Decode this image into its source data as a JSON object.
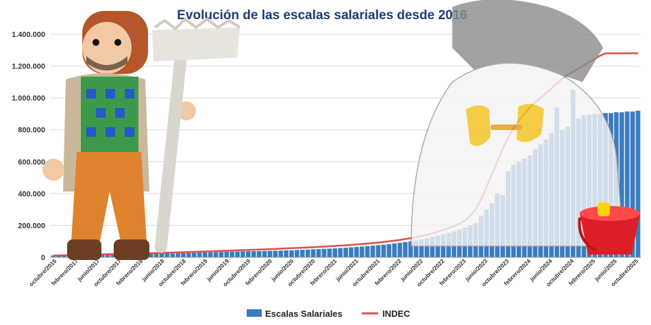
{
  "chart_data": {
    "type": "bar",
    "title": "Evolución de las escalas salariales desde 2016",
    "xlabel": "",
    "ylabel": "",
    "ylim": [
      0,
      1400000
    ],
    "yticks": [
      "0",
      "200.000",
      "400.000",
      "600.000",
      "800.000",
      "1.000.000",
      "1.200.000",
      "1.400.000"
    ],
    "ytick_values": [
      0,
      200000,
      400000,
      600000,
      800000,
      1000000,
      1200000,
      1400000
    ],
    "tick_labels": [
      "octubre/2016",
      "febrero/2017",
      "junio/2017",
      "octubre/2017",
      "febrero/2018",
      "junio/2018",
      "octubre/2018",
      "febrero/2019",
      "junio/2019",
      "octubre/2019",
      "febrero/2020",
      "junio/2020",
      "octubre/2020",
      "febrero/2021",
      "junio/2021",
      "octubre/2021",
      "febrero/2022",
      "junio/2022",
      "octubre/2022",
      "febrero/2023",
      "junio/2023",
      "octubre/2023",
      "febrero/2024",
      "junio/2024",
      "octubre/2024",
      "febrero/2025",
      "junio/2025",
      "octubre/2025"
    ],
    "grid": true,
    "legend_position": "bottom",
    "series": [
      {
        "name": "Escalas Salariales",
        "type": "bar",
        "color": "#3a7cc0",
        "values": [
          12000,
          12400,
          12800,
          13200,
          13600,
          14000,
          14500,
          15000,
          15500,
          16000,
          16500,
          17000,
          17500,
          18000,
          18500,
          19000,
          19500,
          20200,
          21000,
          21800,
          22600,
          23500,
          24400,
          25300,
          26200,
          27200,
          28200,
          29200,
          30200,
          31200,
          32200,
          33300,
          34400,
          35500,
          36500,
          37500,
          38000,
          38500,
          39000,
          39500,
          40200,
          41000,
          42000,
          43000,
          44000,
          45500,
          47000,
          48500,
          50000,
          51500,
          53000,
          54500,
          56000,
          58000,
          60000,
          62500,
          65000,
          67500,
          70000,
          73000,
          76000,
          79000,
          83000,
          87000,
          91000,
          95000,
          100000,
          106000,
          112000,
          119000,
          127000,
          135000,
          144000,
          153000,
          163000,
          174000,
          186000,
          200000,
          215000,
          260000,
          300000,
          340000,
          400000,
          390000,
          540000,
          580000,
          600000,
          620000,
          640000,
          680000,
          710000,
          740000,
          780000,
          940000,
          800000,
          820000,
          1050000,
          870000,
          890000,
          895000,
          900000,
          900000,
          905000,
          905000,
          910000,
          910000,
          915000,
          915000,
          920000
        ]
      },
      {
        "name": "INDEC",
        "type": "line",
        "color": "#d9534f",
        "values": [
          11000,
          11800,
          12600,
          13400,
          14200,
          15000,
          15800,
          16600,
          17400,
          18200,
          19000,
          19800,
          20600,
          21400,
          22200,
          23000,
          23800,
          24800,
          25800,
          26800,
          27800,
          28800,
          29800,
          30800,
          31800,
          32800,
          34000,
          35200,
          36400,
          37600,
          38800,
          40000,
          41200,
          42400,
          43600,
          44800,
          46000,
          47200,
          48400,
          49600,
          51000,
          52500,
          54000,
          55500,
          57000,
          58500,
          60000,
          61500,
          63000,
          65000,
          67000,
          69000,
          71000,
          73000,
          75000,
          77500,
          80000,
          83000,
          86000,
          89000,
          92000,
          96000,
          100000,
          104000,
          109000,
          114000,
          120000,
          126000,
          133000,
          141000,
          150000,
          160000,
          171000,
          183000,
          196000,
          210000,
          230000,
          260000,
          300000,
          360000,
          440000,
          520000,
          600000,
          680000,
          750000,
          810000,
          860000,
          900000,
          940000,
          975000,
          1000000,
          1030000,
          1060000,
          1090000,
          1120000,
          1145000,
          1165000,
          1185000,
          1205000,
          1225000,
          1245000,
          1265000,
          1280000,
          1280000,
          1280000,
          1280000,
          1280000,
          1280000,
          1280000
        ]
      }
    ]
  }
}
